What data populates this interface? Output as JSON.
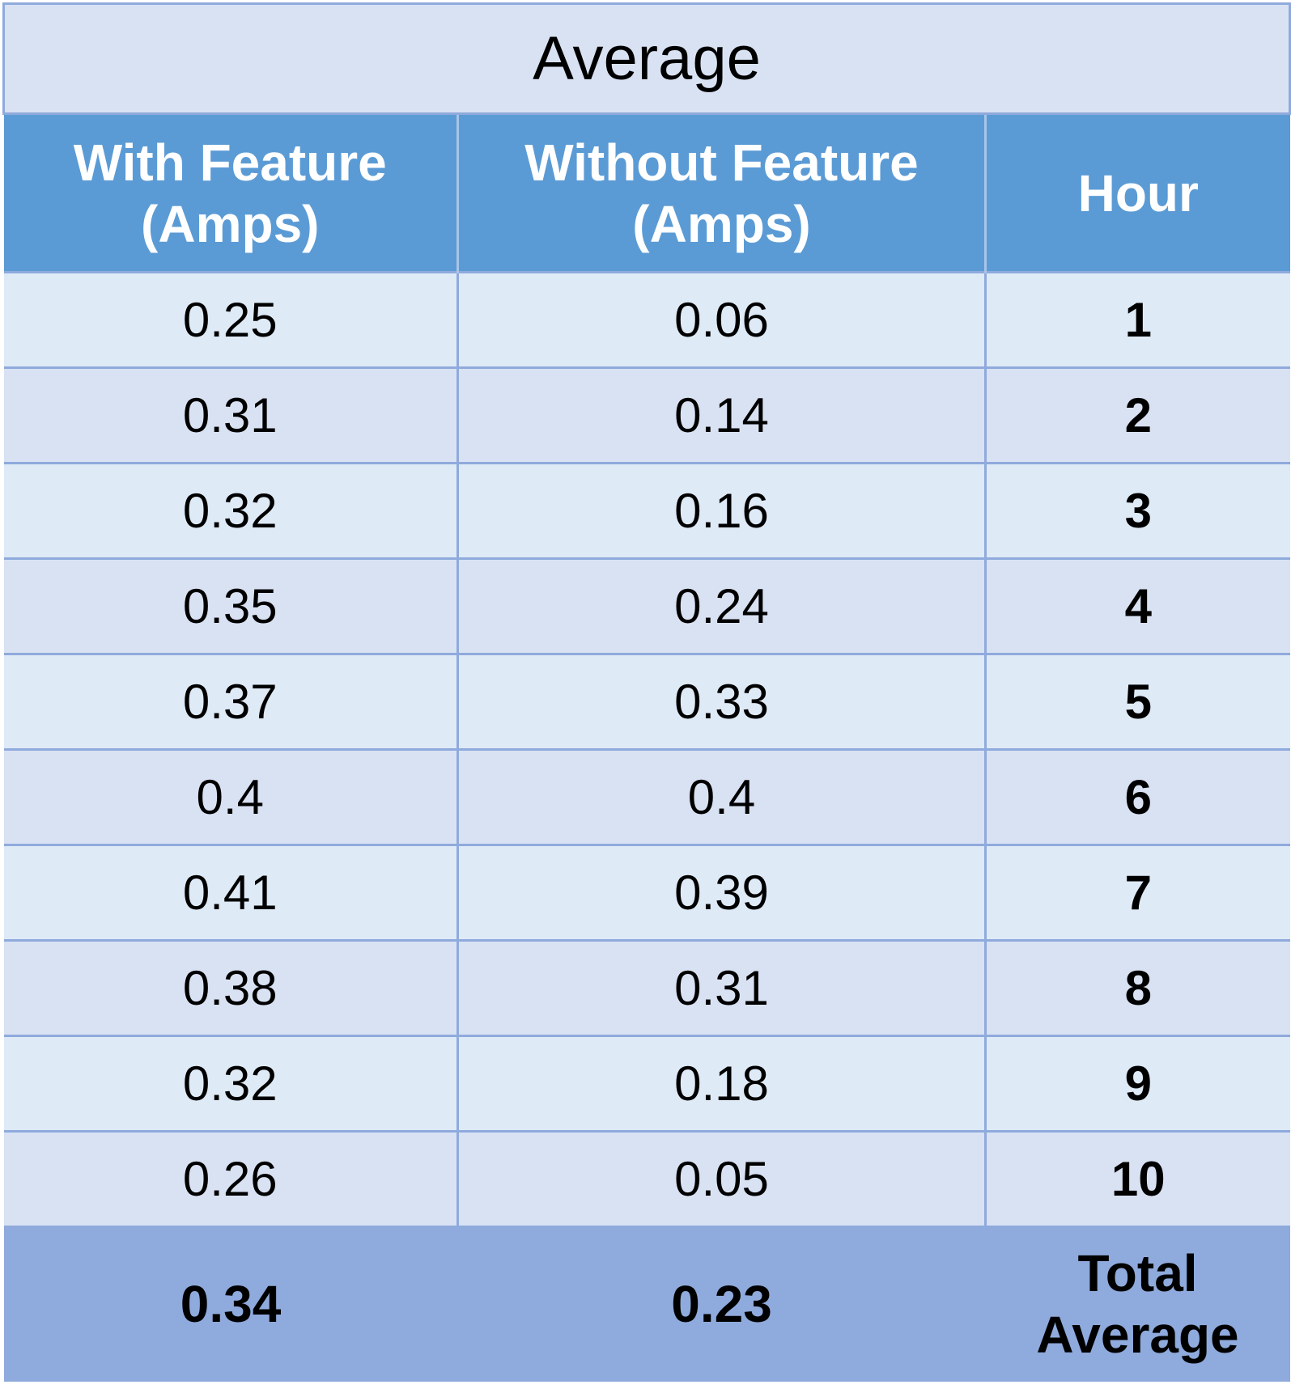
{
  "table": {
    "title": "Average",
    "headers": {
      "with_feature_line1": "With Feature",
      "with_feature_line2": "(Amps)",
      "without_feature_line1": "Without Feature",
      "without_feature_line2": "(Amps)",
      "hour": "Hour"
    },
    "rows": [
      {
        "with": "0.25",
        "without": "0.06",
        "hour": "1"
      },
      {
        "with": "0.31",
        "without": "0.14",
        "hour": "2"
      },
      {
        "with": "0.32",
        "without": "0.16",
        "hour": "3"
      },
      {
        "with": "0.35",
        "without": "0.24",
        "hour": "4"
      },
      {
        "with": "0.37",
        "without": "0.33",
        "hour": "5"
      },
      {
        "with": "0.4",
        "without": "0.4",
        "hour": "6"
      },
      {
        "with": "0.41",
        "without": "0.39",
        "hour": "7"
      },
      {
        "with": "0.38",
        "without": "0.31",
        "hour": "8"
      },
      {
        "with": "0.32",
        "without": "0.18",
        "hour": "9"
      },
      {
        "with": "0.26",
        "without": "0.05",
        "hour": "10"
      }
    ],
    "total": {
      "with": "0.34",
      "without": "0.23",
      "label_line1": "Total",
      "label_line2": "Average"
    }
  },
  "colors": {
    "title_bg": "#d9e2f3",
    "header_bg": "#5b9bd5",
    "row_odd_bg": "#deeaf6",
    "row_even_bg": "#d9e2f3",
    "total_bg": "#8faadc",
    "border": "#8faadc"
  }
}
